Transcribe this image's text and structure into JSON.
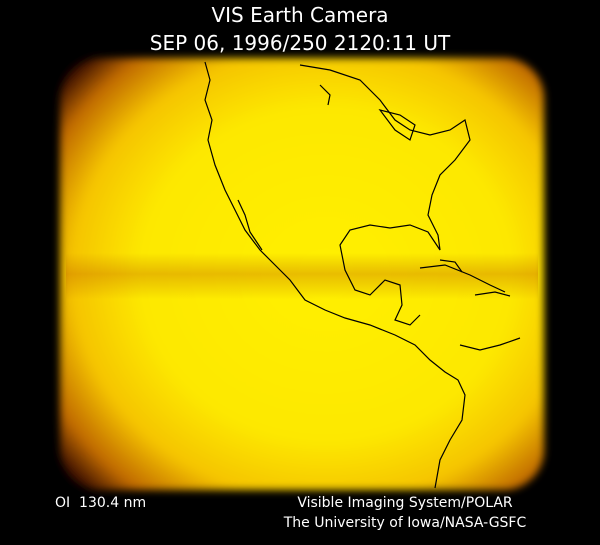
{
  "header": {
    "title": "VIS Earth Camera",
    "subtitle": "SEP 06, 1996/250 2120:11 UT"
  },
  "footer": {
    "filter": "OI  130.4 nm",
    "credits": [
      "Visible Imaging System/POLAR",
      "The University of Iowa/NASA-GSFC"
    ]
  }
}
